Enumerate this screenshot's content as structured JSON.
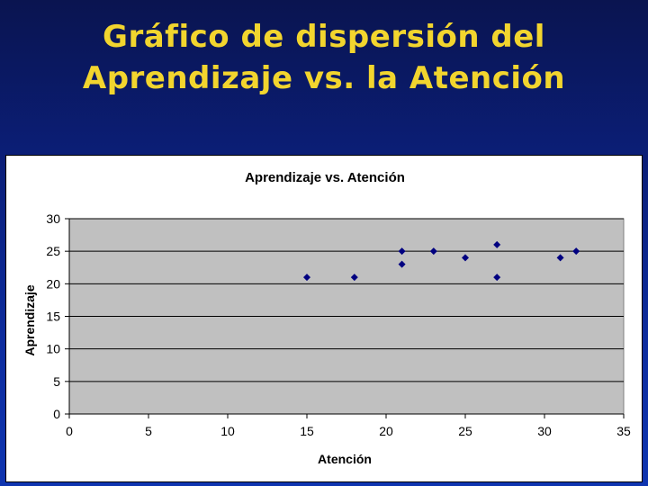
{
  "slide": {
    "title_line1": "Gráfico de dispersión del",
    "title_line2": "Aprendizaje vs. la Atención"
  },
  "colors": {
    "title": "#f2d52e",
    "plot_area": "#c0c0c0",
    "marker": "#000080"
  },
  "chart_data": {
    "type": "scatter",
    "title": "Aprendizaje vs. Atención",
    "xlabel": "Atención",
    "ylabel": "Aprendizaje",
    "xlim": [
      0,
      35
    ],
    "ylim": [
      0,
      30
    ],
    "x_ticks": [
      0,
      5,
      10,
      15,
      20,
      25,
      30,
      35
    ],
    "y_ticks": [
      0,
      5,
      10,
      15,
      20,
      25,
      30
    ],
    "grid": "horizontal",
    "legend": "none",
    "marker": "diamond",
    "points": [
      {
        "x": 15,
        "y": 21
      },
      {
        "x": 18,
        "y": 21
      },
      {
        "x": 21,
        "y": 25
      },
      {
        "x": 21,
        "y": 23
      },
      {
        "x": 23,
        "y": 25
      },
      {
        "x": 25,
        "y": 24
      },
      {
        "x": 27,
        "y": 26
      },
      {
        "x": 27,
        "y": 21
      },
      {
        "x": 31,
        "y": 24
      },
      {
        "x": 32,
        "y": 25
      }
    ]
  }
}
